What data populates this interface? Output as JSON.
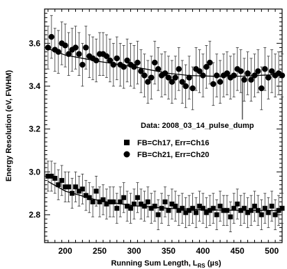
{
  "chart_data": {
    "type": "scatter",
    "title": "",
    "xlabel": "Running Sum Length, L",
    "xlabel_sub": "RS",
    "xlabel_unit": " (µs)",
    "ylabel": "Energy Resolution (eV, FWHM)",
    "xlim": [
      170,
      515
    ],
    "ylim": [
      2.67,
      3.76
    ],
    "xticks": [
      200,
      250,
      300,
      350,
      400,
      450,
      500
    ],
    "yticks": [
      2.8,
      3.0,
      3.2,
      3.4,
      3.6
    ],
    "ytick_labels": [
      "2.8",
      "3.0",
      "3.2",
      "3.4",
      "3.6"
    ],
    "grid": false,
    "annotation": "Data: 2008_03_14_pulse_dump",
    "legend_position": "center-right",
    "series": [
      {
        "name": "FB=Ch17, Err=Ch16",
        "marker": "square",
        "x_start": 175,
        "x_step": 5,
        "values": [
          2.98,
          2.98,
          2.97,
          2.94,
          2.96,
          2.93,
          2.93,
          2.9,
          2.93,
          2.91,
          2.92,
          2.89,
          2.88,
          2.86,
          2.91,
          2.86,
          2.87,
          2.85,
          2.86,
          2.86,
          2.83,
          2.86,
          2.88,
          2.84,
          2.83,
          2.85,
          2.88,
          2.85,
          2.84,
          2.86,
          2.83,
          2.84,
          2.8,
          2.83,
          2.86,
          2.82,
          2.85,
          2.84,
          2.82,
          2.83,
          2.81,
          2.82,
          2.83,
          2.81,
          2.84,
          2.83,
          2.81,
          2.82,
          2.83,
          2.8,
          2.84,
          2.82,
          2.82,
          2.79,
          2.83,
          2.85,
          2.82,
          2.83,
          2.81,
          2.82,
          2.84,
          2.82,
          2.8,
          2.83,
          2.81,
          2.84,
          2.8,
          2.82,
          2.83
        ],
        "error": 0.07,
        "fit": [
          [
            175,
            2.955
          ],
          [
            200,
            2.91
          ],
          [
            250,
            2.865
          ],
          [
            300,
            2.842
          ],
          [
            350,
            2.83
          ],
          [
            400,
            2.823
          ],
          [
            450,
            2.821
          ],
          [
            510,
            2.82
          ]
        ]
      },
      {
        "name": "FB=Ch21, Err=Ch20",
        "marker": "circle",
        "x_start": 175,
        "x_step": 5,
        "values": [
          3.58,
          3.63,
          3.57,
          3.56,
          3.6,
          3.59,
          3.55,
          3.57,
          3.58,
          3.55,
          3.5,
          3.58,
          3.54,
          3.53,
          3.52,
          3.55,
          3.55,
          3.54,
          3.52,
          3.5,
          3.53,
          3.5,
          3.49,
          3.52,
          3.5,
          3.49,
          3.51,
          3.47,
          3.45,
          3.42,
          3.44,
          3.51,
          3.48,
          3.45,
          3.46,
          3.44,
          3.42,
          3.44,
          3.48,
          3.42,
          3.4,
          3.44,
          3.39,
          3.48,
          3.47,
          3.45,
          3.49,
          3.51,
          3.41,
          3.45,
          3.42,
          3.45,
          3.46,
          3.44,
          3.45,
          3.48,
          3.47,
          3.43,
          3.46,
          3.43,
          3.45,
          3.47,
          3.39,
          3.48,
          3.44,
          3.47,
          3.45,
          3.46,
          3.45
        ],
        "error": 0.1,
        "fit": [
          [
            175,
            3.575
          ],
          [
            200,
            3.545
          ],
          [
            250,
            3.515
          ],
          [
            300,
            3.49
          ],
          [
            350,
            3.46
          ],
          [
            380,
            3.45
          ],
          [
            420,
            3.446
          ],
          [
            460,
            3.447
          ],
          [
            510,
            3.455
          ]
        ]
      }
    ]
  }
}
